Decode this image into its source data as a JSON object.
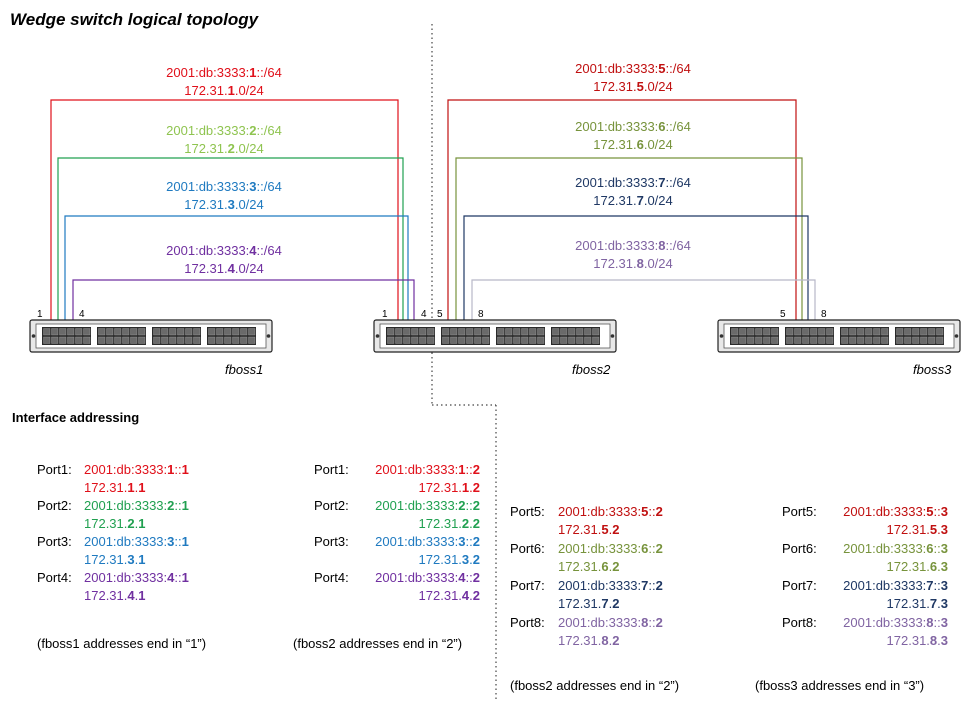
{
  "title": "Wedge switch logical topology",
  "interface_heading": "Interface addressing",
  "colors": {
    "c1": "#e0101a",
    "c2": "#8fc450",
    "c2dark": "#20a050",
    "c3": "#1f7ac0",
    "c4": "#7030a0",
    "c5": "#c01010",
    "c6": "#77933c",
    "c7": "#1f3864",
    "c8": "#8064a2",
    "c8line": "#b8b8c8"
  },
  "links": [
    {
      "id": "s1",
      "v6a": "2001:db:3333:",
      "v6b": "1",
      "v6c": "::/64",
      "v4a": "172.31.",
      "v4b": "1",
      "v4c": ".0/24"
    },
    {
      "id": "s2",
      "v6a": "2001:db:3333:",
      "v6b": "2",
      "v6c": "::/64",
      "v4a": "172.31.",
      "v4b": "2",
      "v4c": ".0/24"
    },
    {
      "id": "s3",
      "v6a": "2001:db:3333:",
      "v6b": "3",
      "v6c": "::/64",
      "v4a": "172.31.",
      "v4b": "3",
      "v4c": ".0/24"
    },
    {
      "id": "s4",
      "v6a": "2001:db:3333:",
      "v6b": "4",
      "v6c": "::/64",
      "v4a": "172.31.",
      "v4b": "4",
      "v4c": ".0/24"
    },
    {
      "id": "s5",
      "v6a": "2001:db:3333:",
      "v6b": "5",
      "v6c": "::/64",
      "v4a": "172.31.",
      "v4b": "5",
      "v4c": ".0/24"
    },
    {
      "id": "s6",
      "v6a": "2001:db:3333:",
      "v6b": "6",
      "v6c": "::/64",
      "v4a": "172.31.",
      "v4b": "6",
      "v4c": ".0/24"
    },
    {
      "id": "s7",
      "v6a": "2001:db:3333:",
      "v6b": "7",
      "v6c": "::/64",
      "v4a": "172.31.",
      "v4b": "7",
      "v4c": ".0/24"
    },
    {
      "id": "s8",
      "v6a": "2001:db:3333:",
      "v6b": "8",
      "v6c": "::/64",
      "v4a": "172.31.",
      "v4b": "8",
      "v4c": ".0/24"
    }
  ],
  "switches": [
    {
      "name": "fboss1",
      "port_labels": [
        "1",
        "4"
      ]
    },
    {
      "name": "fboss2",
      "port_labels": [
        "1",
        "4",
        "5",
        "8"
      ]
    },
    {
      "name": "fboss3",
      "port_labels": [
        "5",
        "8"
      ]
    }
  ],
  "addressing": {
    "fboss1": {
      "ports": [
        {
          "label": "Port1:",
          "v6a": "2001:db:3333:",
          "v6b": "1",
          "v6c": "::",
          "v6d": "1",
          "v4a": "172.31.",
          "v4b": "1",
          "v4c": ".",
          "v4d": "1"
        },
        {
          "label": "Port2:",
          "v6a": "2001:db:3333:",
          "v6b": "2",
          "v6c": "::",
          "v6d": "1",
          "v4a": "172.31.",
          "v4b": "2",
          "v4c": ".",
          "v4d": "1"
        },
        {
          "label": "Port3:",
          "v6a": "2001:db:3333:",
          "v6b": "3",
          "v6c": "::",
          "v6d": "1",
          "v4a": "172.31.",
          "v4b": "3",
          "v4c": ".",
          "v4d": "1"
        },
        {
          "label": "Port4:",
          "v6a": "2001:db:3333:",
          "v6b": "4",
          "v6c": "::",
          "v6d": "1",
          "v4a": "172.31.",
          "v4b": "4",
          "v4c": ".",
          "v4d": "1"
        }
      ],
      "note": "(fboss1 addresses end in “1”)"
    },
    "fboss2a": {
      "ports": [
        {
          "label": "Port1:",
          "v6a": "2001:db:3333:",
          "v6b": "1",
          "v6c": "::",
          "v6d": "2",
          "v4a": "172.31.",
          "v4b": "1",
          "v4c": ".",
          "v4d": "2"
        },
        {
          "label": "Port2:",
          "v6a": "2001:db:3333:",
          "v6b": "2",
          "v6c": "::",
          "v6d": "2",
          "v4a": "172.31.",
          "v4b": "2",
          "v4c": ".",
          "v4d": "2"
        },
        {
          "label": "Port3:",
          "v6a": "2001:db:3333:",
          "v6b": "3",
          "v6c": "::",
          "v6d": "2",
          "v4a": "172.31.",
          "v4b": "3",
          "v4c": ".",
          "v4d": "2"
        },
        {
          "label": "Port4:",
          "v6a": "2001:db:3333:",
          "v6b": "4",
          "v6c": "::",
          "v6d": "2",
          "v4a": "172.31.",
          "v4b": "4",
          "v4c": ".",
          "v4d": "2"
        }
      ],
      "note": "(fboss2 addresses end in “2”)"
    },
    "fboss2b": {
      "ports": [
        {
          "label": "Port5:",
          "v6a": "2001:db:3333:",
          "v6b": "5",
          "v6c": "::",
          "v6d": "2",
          "v4a": "172.31.",
          "v4b": "5",
          "v4c": ".",
          "v4d": "2"
        },
        {
          "label": "Port6:",
          "v6a": "2001:db:3333:",
          "v6b": "6",
          "v6c": "::",
          "v6d": "2",
          "v4a": "172.31.",
          "v4b": "6",
          "v4c": ".",
          "v4d": "2"
        },
        {
          "label": "Port7:",
          "v6a": "2001:db:3333:",
          "v6b": "7",
          "v6c": "::",
          "v6d": "2",
          "v4a": "172.31.",
          "v4b": "7",
          "v4c": ".",
          "v4d": "2"
        },
        {
          "label": "Port8:",
          "v6a": "2001:db:3333:",
          "v6b": "8",
          "v6c": "::",
          "v6d": "2",
          "v4a": "172.31.",
          "v4b": "8",
          "v4c": ".",
          "v4d": "2"
        }
      ],
      "note": "(fboss2 addresses end in “2”)"
    },
    "fboss3": {
      "ports": [
        {
          "label": "Port5:",
          "v6a": "2001:db:3333:",
          "v6b": "5",
          "v6c": "::",
          "v6d": "3",
          "v4a": "172.31.",
          "v4b": "5",
          "v4c": ".",
          "v4d": "3"
        },
        {
          "label": "Port6:",
          "v6a": "2001:db:3333:",
          "v6b": "6",
          "v6c": "::",
          "v6d": "3",
          "v4a": "172.31.",
          "v4b": "6",
          "v4c": ".",
          "v4d": "3"
        },
        {
          "label": "Port7:",
          "v6a": "2001:db:3333:",
          "v6b": "7",
          "v6c": "::",
          "v6d": "3",
          "v4a": "172.31.",
          "v4b": "7",
          "v4c": ".",
          "v4d": "3"
        },
        {
          "label": "Port8:",
          "v6a": "2001:db:3333:",
          "v6b": "8",
          "v6c": "::",
          "v6d": "3",
          "v4a": "172.31.",
          "v4b": "8",
          "v4c": ".",
          "v4d": "3"
        }
      ],
      "note": "(fboss3 addresses end in “3”)"
    }
  }
}
